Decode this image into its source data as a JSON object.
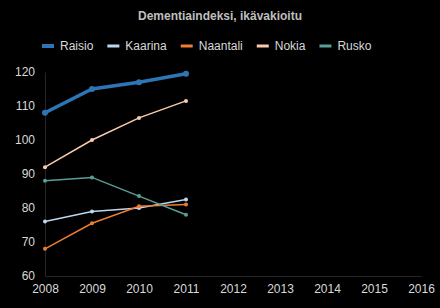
{
  "chart_data": {
    "type": "line",
    "title": "Dementiaindeksi, ikävakioitu",
    "x": [
      2008,
      2009,
      2010,
      2011
    ],
    "series": [
      {
        "name": "Raisio",
        "color": "#2e75b6",
        "values": [
          108,
          115,
          117,
          119.5
        ],
        "marker": "circle"
      },
      {
        "name": "Kaarina",
        "color": "#bdd7ee",
        "values": [
          76,
          79,
          80,
          82.5
        ],
        "marker": "circle"
      },
      {
        "name": "Naantali",
        "color": "#ed7d31",
        "values": [
          68,
          75.5,
          80.5,
          81
        ],
        "marker": "circle"
      },
      {
        "name": "Nokia",
        "color": "#f8cbad",
        "values": [
          92,
          100,
          106.5,
          111.5
        ],
        "marker": "circle"
      },
      {
        "name": "Rusko",
        "color": "#5a9e99",
        "values": [
          88,
          89,
          83.5,
          78
        ],
        "marker": "circle"
      }
    ],
    "xlim": [
      2008,
      2016
    ],
    "xticks": [
      2008,
      2009,
      2010,
      2011,
      2012,
      2013,
      2014,
      2015,
      2016
    ],
    "ylim": [
      60,
      120
    ],
    "yticks": [
      60,
      70,
      80,
      90,
      100,
      110,
      120
    ],
    "grid": false,
    "legend": "top",
    "line_style": "solid"
  }
}
